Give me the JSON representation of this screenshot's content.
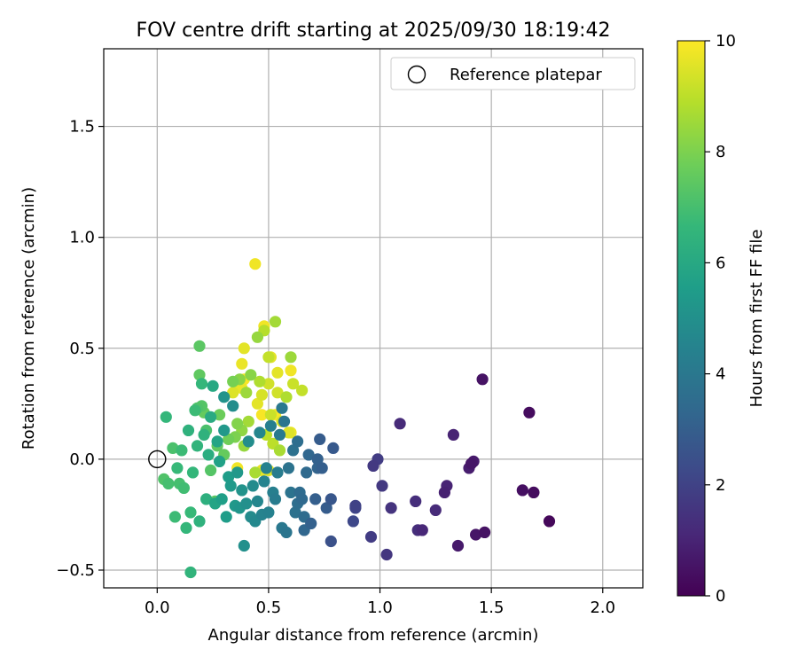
{
  "chart_data": {
    "type": "scatter",
    "title": "FOV centre drift starting at 2025/09/30 18:19:42",
    "xlabel": "Angular distance from reference (arcmin)",
    "ylabel": "Rotation from reference (arcmin)",
    "xlim": [
      -0.24,
      2.18
    ],
    "ylim": [
      -0.58,
      1.85
    ],
    "xticks": [
      0.0,
      0.5,
      1.0,
      1.5,
      2.0
    ],
    "yticks": [
      -0.5,
      0.0,
      0.5,
      1.0,
      1.5
    ],
    "xtick_labels": [
      "0.0",
      "0.5",
      "1.0",
      "1.5",
      "2.0"
    ],
    "ytick_labels": [
      "−0.5",
      "0.0",
      "0.5",
      "1.0",
      "1.5"
    ],
    "grid": true,
    "legend": {
      "position": "top-right",
      "entries": [
        "Reference platepar"
      ]
    },
    "reference_point": {
      "x": 0.0,
      "y": 0.0,
      "label": "Reference platepar"
    },
    "colorbar": {
      "label": "Hours from first FF file",
      "range": [
        0,
        10
      ],
      "ticks": [
        0,
        2,
        4,
        6,
        8,
        10
      ],
      "tick_labels": [
        "0",
        "2",
        "4",
        "6",
        "8",
        "10"
      ],
      "colormap": "viridis",
      "color_stops": [
        "#440154",
        "#482878",
        "#3e4989",
        "#31688e",
        "#26828e",
        "#1f9e89",
        "#35b779",
        "#6ece58",
        "#b5de2b",
        "#fde725"
      ]
    },
    "points": [
      {
        "x": 1.76,
        "y": -0.28,
        "t": 0.2
      },
      {
        "x": 1.69,
        "y": -0.15,
        "t": 0.3
      },
      {
        "x": 1.64,
        "y": -0.14,
        "t": 0.4
      },
      {
        "x": 1.67,
        "y": 0.21,
        "t": 0.3
      },
      {
        "x": 1.47,
        "y": -0.33,
        "t": 0.5
      },
      {
        "x": 1.43,
        "y": -0.34,
        "t": 0.6
      },
      {
        "x": 1.46,
        "y": 0.36,
        "t": 0.5
      },
      {
        "x": 1.41,
        "y": -0.02,
        "t": 0.6
      },
      {
        "x": 1.42,
        "y": -0.01,
        "t": 0.7
      },
      {
        "x": 1.4,
        "y": -0.04,
        "t": 0.8
      },
      {
        "x": 1.35,
        "y": -0.39,
        "t": 0.7
      },
      {
        "x": 1.29,
        "y": -0.15,
        "t": 0.9
      },
      {
        "x": 1.3,
        "y": -0.12,
        "t": 1.0
      },
      {
        "x": 1.33,
        "y": 0.11,
        "t": 1.0
      },
      {
        "x": 1.25,
        "y": -0.23,
        "t": 1.2
      },
      {
        "x": 1.19,
        "y": -0.32,
        "t": 1.1
      },
      {
        "x": 1.17,
        "y": -0.32,
        "t": 1.3
      },
      {
        "x": 1.16,
        "y": -0.19,
        "t": 1.3
      },
      {
        "x": 1.09,
        "y": 0.16,
        "t": 1.2
      },
      {
        "x": 1.05,
        "y": -0.22,
        "t": 1.5
      },
      {
        "x": 1.03,
        "y": -0.43,
        "t": 1.6
      },
      {
        "x": 1.01,
        "y": -0.12,
        "t": 1.7
      },
      {
        "x": 0.99,
        "y": 0.0,
        "t": 1.8
      },
      {
        "x": 0.97,
        "y": -0.03,
        "t": 1.7
      },
      {
        "x": 0.96,
        "y": -0.35,
        "t": 1.8
      },
      {
        "x": 0.89,
        "y": -0.21,
        "t": 2.0
      },
      {
        "x": 0.89,
        "y": -0.22,
        "t": 2.1
      },
      {
        "x": 0.88,
        "y": -0.28,
        "t": 2.2
      },
      {
        "x": 0.79,
        "y": 0.05,
        "t": 2.8
      },
      {
        "x": 0.78,
        "y": -0.37,
        "t": 2.5
      },
      {
        "x": 0.78,
        "y": -0.18,
        "t": 2.7
      },
      {
        "x": 0.76,
        "y": -0.22,
        "t": 2.9
      },
      {
        "x": 0.74,
        "y": -0.04,
        "t": 3.0
      },
      {
        "x": 0.73,
        "y": 0.09,
        "t": 2.9
      },
      {
        "x": 0.72,
        "y": 0.0,
        "t": 3.1
      },
      {
        "x": 0.72,
        "y": -0.04,
        "t": 3.2
      },
      {
        "x": 0.71,
        "y": -0.18,
        "t": 3.0
      },
      {
        "x": 0.69,
        "y": -0.29,
        "t": 3.1
      },
      {
        "x": 0.68,
        "y": 0.02,
        "t": 3.3
      },
      {
        "x": 0.67,
        "y": -0.06,
        "t": 3.4
      },
      {
        "x": 0.66,
        "y": -0.32,
        "t": 3.3
      },
      {
        "x": 0.66,
        "y": -0.26,
        "t": 3.5
      },
      {
        "x": 0.65,
        "y": -0.18,
        "t": 3.4
      },
      {
        "x": 0.64,
        "y": -0.15,
        "t": 3.5
      },
      {
        "x": 0.63,
        "y": -0.2,
        "t": 3.6
      },
      {
        "x": 0.63,
        "y": 0.08,
        "t": 3.6
      },
      {
        "x": 0.62,
        "y": -0.24,
        "t": 3.7
      },
      {
        "x": 0.61,
        "y": 0.04,
        "t": 3.7
      },
      {
        "x": 0.6,
        "y": -0.15,
        "t": 3.8
      },
      {
        "x": 0.59,
        "y": -0.04,
        "t": 3.8
      },
      {
        "x": 0.58,
        "y": -0.33,
        "t": 3.9
      },
      {
        "x": 0.57,
        "y": 0.17,
        "t": 3.9
      },
      {
        "x": 0.56,
        "y": 0.23,
        "t": 4.0
      },
      {
        "x": 0.56,
        "y": -0.31,
        "t": 4.0
      },
      {
        "x": 0.55,
        "y": 0.11,
        "t": 4.1
      },
      {
        "x": 0.54,
        "y": -0.06,
        "t": 4.2
      },
      {
        "x": 0.53,
        "y": -0.18,
        "t": 4.2
      },
      {
        "x": 0.52,
        "y": -0.15,
        "t": 4.3
      },
      {
        "x": 0.51,
        "y": 0.15,
        "t": 4.3
      },
      {
        "x": 0.5,
        "y": -0.24,
        "t": 4.4
      },
      {
        "x": 0.49,
        "y": -0.04,
        "t": 4.4
      },
      {
        "x": 0.48,
        "y": -0.1,
        "t": 4.5
      },
      {
        "x": 0.47,
        "y": -0.25,
        "t": 4.5
      },
      {
        "x": 0.46,
        "y": 0.12,
        "t": 4.6
      },
      {
        "x": 0.45,
        "y": -0.19,
        "t": 4.6
      },
      {
        "x": 0.44,
        "y": -0.28,
        "t": 4.7
      },
      {
        "x": 0.43,
        "y": -0.12,
        "t": 4.8
      },
      {
        "x": 0.42,
        "y": -0.26,
        "t": 4.8
      },
      {
        "x": 0.41,
        "y": 0.08,
        "t": 4.9
      },
      {
        "x": 0.4,
        "y": -0.2,
        "t": 5.0
      },
      {
        "x": 0.39,
        "y": -0.39,
        "t": 5.0
      },
      {
        "x": 0.38,
        "y": -0.14,
        "t": 5.1
      },
      {
        "x": 0.37,
        "y": -0.22,
        "t": 5.2
      },
      {
        "x": 0.36,
        "y": -0.06,
        "t": 5.3
      },
      {
        "x": 0.35,
        "y": -0.21,
        "t": 5.3
      },
      {
        "x": 0.34,
        "y": 0.24,
        "t": 4.9
      },
      {
        "x": 0.33,
        "y": -0.12,
        "t": 5.4
      },
      {
        "x": 0.32,
        "y": -0.08,
        "t": 5.5
      },
      {
        "x": 0.31,
        "y": -0.26,
        "t": 5.5
      },
      {
        "x": 0.3,
        "y": 0.28,
        "t": 5.1
      },
      {
        "x": 0.3,
        "y": 0.13,
        "t": 5.3
      },
      {
        "x": 0.29,
        "y": -0.18,
        "t": 5.6
      },
      {
        "x": 0.28,
        "y": -0.01,
        "t": 5.7
      },
      {
        "x": 0.27,
        "y": 0.08,
        "t": 5.8
      },
      {
        "x": 0.26,
        "y": -0.2,
        "t": 5.8
      },
      {
        "x": 0.25,
        "y": 0.33,
        "t": 6.0
      },
      {
        "x": 0.24,
        "y": 0.19,
        "t": 6.1
      },
      {
        "x": 0.23,
        "y": 0.02,
        "t": 6.2
      },
      {
        "x": 0.22,
        "y": -0.18,
        "t": 6.3
      },
      {
        "x": 0.21,
        "y": 0.11,
        "t": 6.4
      },
      {
        "x": 0.2,
        "y": 0.34,
        "t": 6.6
      },
      {
        "x": 0.19,
        "y": -0.28,
        "t": 6.4
      },
      {
        "x": 0.18,
        "y": 0.06,
        "t": 6.5
      },
      {
        "x": 0.17,
        "y": 0.22,
        "t": 6.8
      },
      {
        "x": 0.16,
        "y": -0.06,
        "t": 6.6
      },
      {
        "x": 0.15,
        "y": -0.51,
        "t": 6.5
      },
      {
        "x": 0.15,
        "y": -0.24,
        "t": 6.7
      },
      {
        "x": 0.14,
        "y": 0.13,
        "t": 6.4
      },
      {
        "x": 0.13,
        "y": -0.31,
        "t": 6.6
      },
      {
        "x": 0.12,
        "y": -0.13,
        "t": 6.9
      },
      {
        "x": 0.11,
        "y": 0.04,
        "t": 6.8
      },
      {
        "x": 0.1,
        "y": -0.11,
        "t": 7.0
      },
      {
        "x": 0.09,
        "y": -0.04,
        "t": 6.7
      },
      {
        "x": 0.08,
        "y": -0.26,
        "t": 6.8
      },
      {
        "x": 0.07,
        "y": 0.05,
        "t": 7.1
      },
      {
        "x": 0.05,
        "y": -0.11,
        "t": 7.0
      },
      {
        "x": 0.04,
        "y": 0.19,
        "t": 6.6
      },
      {
        "x": 0.03,
        "y": -0.09,
        "t": 7.2
      },
      {
        "x": 0.19,
        "y": 0.51,
        "t": 7.4
      },
      {
        "x": 0.19,
        "y": 0.38,
        "t": 7.5
      },
      {
        "x": 0.18,
        "y": 0.23,
        "t": 7.2
      },
      {
        "x": 0.2,
        "y": 0.24,
        "t": 7.3
      },
      {
        "x": 0.21,
        "y": 0.21,
        "t": 7.6
      },
      {
        "x": 0.22,
        "y": 0.13,
        "t": 7.1
      },
      {
        "x": 0.24,
        "y": -0.05,
        "t": 7.3
      },
      {
        "x": 0.26,
        "y": -0.19,
        "t": 7.4
      },
      {
        "x": 0.27,
        "y": 0.06,
        "t": 7.5
      },
      {
        "x": 0.28,
        "y": 0.2,
        "t": 7.7
      },
      {
        "x": 0.3,
        "y": 0.02,
        "t": 7.6
      },
      {
        "x": 0.32,
        "y": 0.09,
        "t": 7.8
      },
      {
        "x": 0.34,
        "y": 0.35,
        "t": 7.9
      },
      {
        "x": 0.35,
        "y": 0.1,
        "t": 8.0
      },
      {
        "x": 0.36,
        "y": 0.16,
        "t": 8.1
      },
      {
        "x": 0.37,
        "y": 0.36,
        "t": 8.2
      },
      {
        "x": 0.38,
        "y": 0.13,
        "t": 8.3
      },
      {
        "x": 0.39,
        "y": 0.06,
        "t": 8.4
      },
      {
        "x": 0.4,
        "y": 0.3,
        "t": 8.5
      },
      {
        "x": 0.41,
        "y": 0.17,
        "t": 8.6
      },
      {
        "x": 0.42,
        "y": 0.38,
        "t": 8.2
      },
      {
        "x": 0.44,
        "y": -0.06,
        "t": 8.7
      },
      {
        "x": 0.45,
        "y": 0.55,
        "t": 8.4
      },
      {
        "x": 0.46,
        "y": 0.35,
        "t": 8.8
      },
      {
        "x": 0.48,
        "y": 0.58,
        "t": 8.9
      },
      {
        "x": 0.49,
        "y": 0.11,
        "t": 9.0
      },
      {
        "x": 0.5,
        "y": 0.46,
        "t": 9.1
      },
      {
        "x": 0.51,
        "y": 0.2,
        "t": 9.2
      },
      {
        "x": 0.52,
        "y": 0.07,
        "t": 9.0
      },
      {
        "x": 0.53,
        "y": 0.62,
        "t": 8.6
      },
      {
        "x": 0.54,
        "y": 0.3,
        "t": 9.3
      },
      {
        "x": 0.55,
        "y": 0.04,
        "t": 8.7
      },
      {
        "x": 0.56,
        "y": 0.17,
        "t": 9.4
      },
      {
        "x": 0.58,
        "y": 0.28,
        "t": 8.8
      },
      {
        "x": 0.59,
        "y": 0.12,
        "t": 9.5
      },
      {
        "x": 0.6,
        "y": 0.46,
        "t": 8.5
      },
      {
        "x": 0.61,
        "y": 0.34,
        "t": 9.2
      },
      {
        "x": 0.65,
        "y": 0.31,
        "t": 9.1
      },
      {
        "x": 0.44,
        "y": 0.88,
        "t": 9.8
      },
      {
        "x": 0.37,
        "y": 0.34,
        "t": 9.9
      },
      {
        "x": 0.38,
        "y": 0.32,
        "t": 9.7
      },
      {
        "x": 0.39,
        "y": 0.5,
        "t": 9.6
      },
      {
        "x": 0.38,
        "y": 0.43,
        "t": 9.7
      },
      {
        "x": 0.34,
        "y": 0.3,
        "t": 9.5
      },
      {
        "x": 0.36,
        "y": -0.04,
        "t": 9.8
      },
      {
        "x": 0.39,
        "y": 0.36,
        "t": 9.9
      },
      {
        "x": 0.45,
        "y": 0.25,
        "t": 9.6
      },
      {
        "x": 0.47,
        "y": 0.2,
        "t": 9.9
      },
      {
        "x": 0.48,
        "y": 0.6,
        "t": 9.8
      },
      {
        "x": 0.47,
        "y": -0.05,
        "t": 9.7
      },
      {
        "x": 0.5,
        "y": -0.05,
        "t": 9.5
      },
      {
        "x": 0.53,
        "y": 0.2,
        "t": 9.9
      },
      {
        "x": 0.54,
        "y": 0.39,
        "t": 9.6
      },
      {
        "x": 0.6,
        "y": 0.4,
        "t": 9.8
      },
      {
        "x": 0.6,
        "y": 0.12,
        "t": 9.7
      },
      {
        "x": 0.47,
        "y": 0.29,
        "t": 9.4
      },
      {
        "x": 0.5,
        "y": 0.34,
        "t": 9.3
      },
      {
        "x": 0.51,
        "y": 0.46,
        "t": 9.6
      }
    ]
  }
}
